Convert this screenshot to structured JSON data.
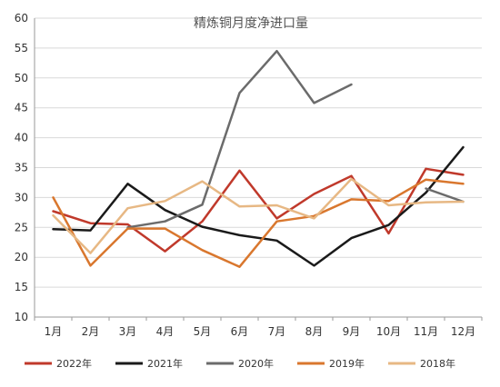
{
  "chart_data": {
    "type": "line",
    "title": "精炼铜月度净进口量",
    "xlabel": "",
    "ylabel": "",
    "categories": [
      "1月",
      "2月",
      "3月",
      "4月",
      "5月",
      "6月",
      "7月",
      "8月",
      "9月",
      "10月",
      "11月",
      "12月"
    ],
    "ylim": [
      10,
      60
    ],
    "yticks": [
      10,
      15,
      20,
      25,
      30,
      35,
      40,
      45,
      50,
      55,
      60
    ],
    "grid": true,
    "legend_position": "bottom",
    "series": [
      {
        "name": "2022年",
        "color": "#c0392b",
        "values": [
          27.7,
          25.7,
          25.5,
          21.0,
          26.0,
          34.5,
          26.5,
          30.6,
          33.6,
          24.0,
          34.8,
          33.8
        ]
      },
      {
        "name": "2021年",
        "color": "#1a1a1a",
        "values": [
          24.7,
          24.5,
          32.3,
          27.9,
          25.1,
          23.7,
          22.8,
          18.6,
          23.2,
          25.4,
          30.8,
          38.4
        ]
      },
      {
        "name": "2020年",
        "color": "#6b6b6b",
        "values": [
          null,
          null,
          25.0,
          26.0,
          28.8,
          47.5,
          54.5,
          45.8,
          48.9,
          null,
          31.5,
          29.3
        ]
      },
      {
        "name": "2019年",
        "color": "#d9772e",
        "values": [
          30.0,
          18.6,
          24.8,
          24.8,
          21.2,
          18.4,
          26.0,
          26.9,
          29.7,
          29.4,
          33.0,
          32.3
        ]
      },
      {
        "name": "2018年",
        "color": "#e7b884",
        "values": [
          27.0,
          20.7,
          28.2,
          29.4,
          32.7,
          28.5,
          28.7,
          26.5,
          33.1,
          28.7,
          29.2,
          29.3
        ]
      }
    ]
  }
}
